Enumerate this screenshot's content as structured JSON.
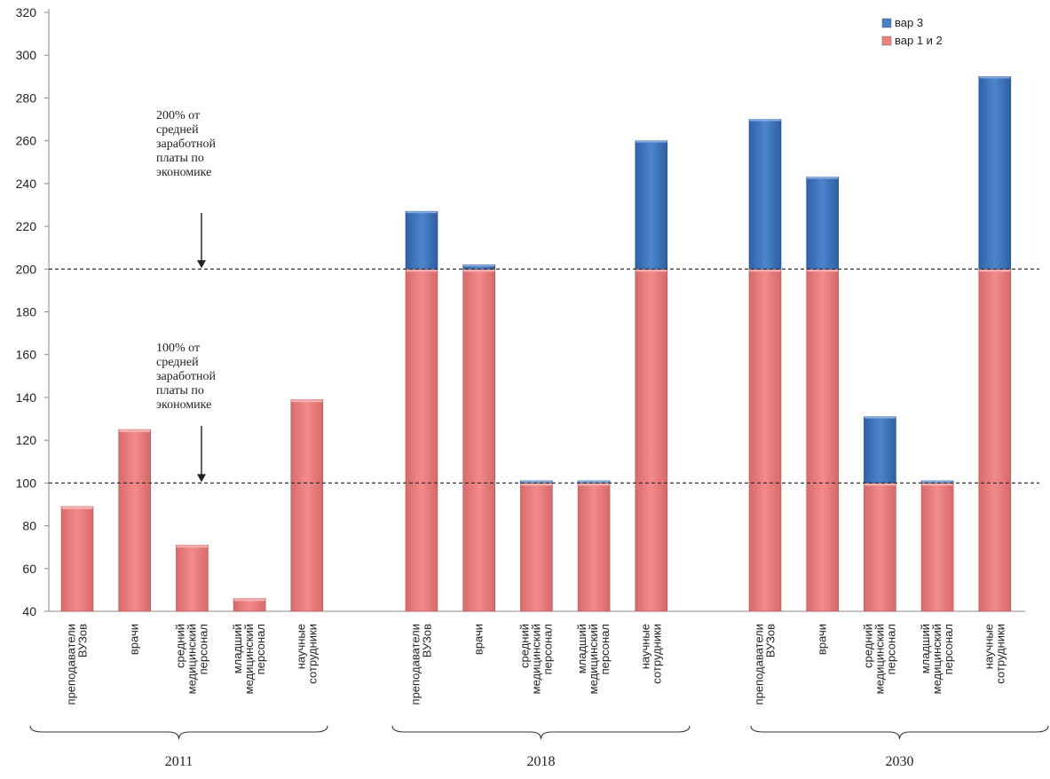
{
  "chart_data": {
    "type": "bar",
    "stacked": true,
    "ylim": [
      40,
      320
    ],
    "yticks": [
      40,
      60,
      80,
      100,
      120,
      140,
      160,
      180,
      200,
      220,
      240,
      260,
      280,
      300,
      320
    ],
    "groups": [
      {
        "label": "2011",
        "categories": [
          [
            "преподаватели",
            "ВУЗов"
          ],
          [
            "врачи"
          ],
          [
            "средний",
            "медицинский",
            "персонал"
          ],
          [
            "младший",
            "медицинский",
            "персонал"
          ],
          [
            "научные",
            "сотрудники"
          ]
        ],
        "base": [
          89,
          125,
          71,
          46,
          139
        ],
        "extra": [
          0,
          0,
          0,
          0,
          0
        ]
      },
      {
        "label": "2018",
        "categories": [
          [
            "преподаватели",
            "ВУЗов"
          ],
          [
            "врачи"
          ],
          [
            "средний",
            "медицинский",
            "персонал"
          ],
          [
            "младший",
            "медицинский",
            "персонал"
          ],
          [
            "научные",
            "сотрудники"
          ]
        ],
        "base": [
          200,
          200,
          100,
          100,
          200
        ],
        "extra": [
          27,
          2,
          1,
          1,
          60
        ]
      },
      {
        "label": "2030",
        "categories": [
          [
            "преподаватели",
            "ВУЗов"
          ],
          [
            "врачи"
          ],
          [
            "средний",
            "медицинский",
            "персонал"
          ],
          [
            "младший",
            "медицинский",
            "персонал"
          ],
          [
            "научные",
            "сотрудники"
          ]
        ],
        "base": [
          200,
          200,
          100,
          100,
          200
        ],
        "extra": [
          70,
          43,
          31,
          1,
          90
        ]
      }
    ],
    "series": [
      {
        "name": "вар 1 и 2",
        "key": "base",
        "color": "#f08080"
      },
      {
        "name": "вар 3",
        "key": "extra",
        "color": "#4a80c6"
      }
    ],
    "legend": [
      "вар 3",
      "вар 1 и 2"
    ],
    "reference_lines": [
      200,
      100
    ],
    "annotations": [
      {
        "value": 200,
        "lines": [
          "200% от",
          "средней",
          "заработной",
          "платы по",
          "экономике"
        ]
      },
      {
        "value": 100,
        "lines": [
          "100% от",
          "средней",
          "заработной",
          "платы по",
          "экономике"
        ]
      }
    ]
  }
}
